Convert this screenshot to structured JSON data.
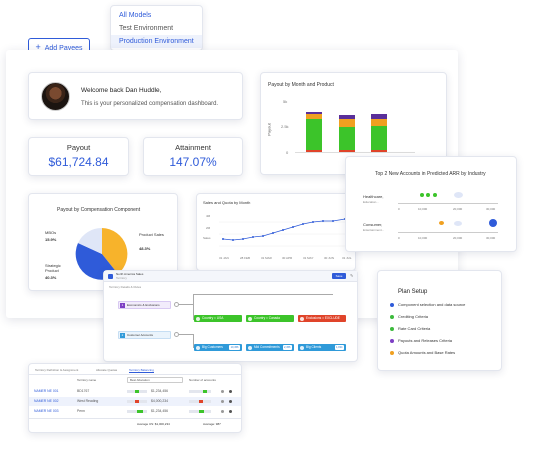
{
  "dropdown": {
    "items": [
      {
        "label": "All Models"
      },
      {
        "label": "Test Environment"
      },
      {
        "label": "Production Environment"
      }
    ]
  },
  "add_payees": {
    "icon": "plus-icon",
    "label": "Add Payees"
  },
  "welcome": {
    "title": "Welcome back Dan Huddle,",
    "subtitle": "This is your personalized compensation dashboard."
  },
  "payout": {
    "label": "Payout",
    "value": "$61,724.84"
  },
  "attainment": {
    "label": "Attainment",
    "value": "147.07%"
  },
  "payout_month_product": {
    "title": "Payout by Month and Product",
    "y_label": "Payout",
    "ticks": [
      "5k",
      "2.5k",
      "0"
    ]
  },
  "comp_component": {
    "title": "Payout by Compensation Component",
    "labels": [
      {
        "name": "MBOs",
        "pct": "15.9%"
      },
      {
        "name": "Product Sales",
        "pct": "48.3%"
      },
      {
        "name": "Strategic Product",
        "pct": "40.3%"
      }
    ]
  },
  "sales_quota": {
    "title": "Sales and Quota by Month",
    "y_ticks": [
      "4M",
      "2M",
      "Sales"
    ],
    "x_ticks": [
      "31 JAN",
      "28 FEB",
      "31 MAR",
      "30 APR",
      "31 MAY",
      "30 JUN",
      "31 JUL",
      "31 AUG"
    ]
  },
  "top_accounts": {
    "title": "Top 2 New Accounts in Predicted ARR by Industry",
    "rows": [
      {
        "label": "Healthcare,",
        "sub": "Education..."
      },
      {
        "label": "Consumer,",
        "sub": "Entertainment..."
      }
    ],
    "x_ticks": [
      "0",
      "10,000",
      "20,000",
      "30,000"
    ]
  },
  "plan_setup": {
    "title": "Plan Setup",
    "items": [
      {
        "label": "Component selection and data source",
        "color": "#2f5bd9"
      },
      {
        "label": "Crediting Criteria",
        "color": "#3cba3c"
      },
      {
        "label": "Rate Card Criteria",
        "color": "#3cba3c"
      },
      {
        "label": "Payouts and Releases Criteria",
        "color": "#7d3fc4"
      },
      {
        "label": "Quota Amounts and Base Rates",
        "color": "#f0a020"
      }
    ]
  },
  "territory_tree": {
    "header": "North America Sales",
    "header_sub": "Territory",
    "tab": "Territory Details & Rules",
    "action": "Save",
    "groups": [
      {
        "num": "1",
        "label": "Economics & Exclusions"
      },
      {
        "num": "2",
        "label": "Customer Accounts"
      }
    ],
    "nodes_row1": [
      {
        "label": "Country = USA",
        "color": "#3cba3c"
      },
      {
        "label": "Country = Canada",
        "color": "#3cba3c"
      },
      {
        "label": "Exclusions = EXCLUDE",
        "color": "#e0442a"
      }
    ],
    "nodes_row2": [
      {
        "label": "Big Customers",
        "chip": "10,456",
        "color": "#2f9ad9"
      },
      {
        "label": "Mid Commitments",
        "chip": "2,456",
        "color": "#2f9ad9"
      },
      {
        "label": "Big Clients",
        "chip": "1,034",
        "color": "#2f9ad9"
      }
    ]
  },
  "territory_table": {
    "tabs": [
      "Territory Definition & Assignment",
      "Allocate Quotas",
      "Territory Balancing"
    ],
    "columns": [
      "Territory name",
      "Best Allocation",
      "Number of accounts"
    ],
    "rows": [
      {
        "id": "NAMER NE 001",
        "name": "BD1767",
        "amount": "$1,234,456"
      },
      {
        "id": "NAMER NE 002",
        "name": "West Reading",
        "amount": "$4,000,234"
      },
      {
        "id": "NAMER NE 003",
        "name": "Penn",
        "amount": "$1,234,456"
      }
    ],
    "footer": {
      "avg_label": "Average US: $1,000,234",
      "acc_label": "Average: 987"
    }
  }
}
